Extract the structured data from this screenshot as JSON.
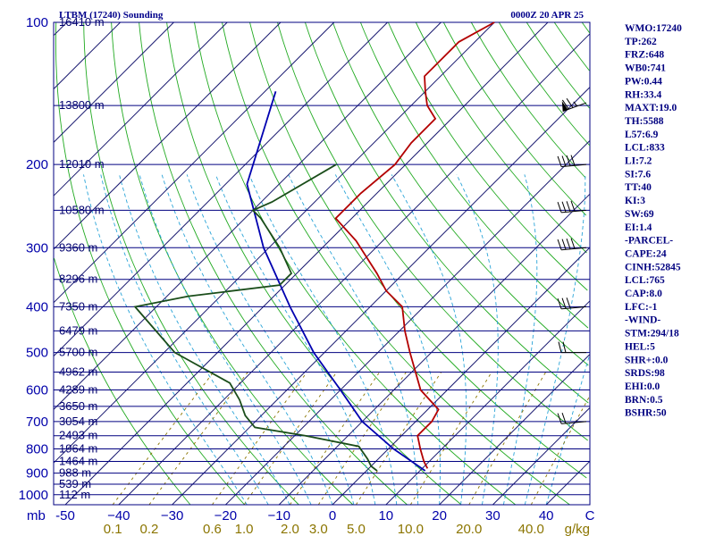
{
  "chart_data": {
    "type": "skew-t sounding",
    "title_left": "LTBM (17240) Sounding",
    "title_right": "0000Z 20 APR 25",
    "pressure_unit_label": "mb",
    "mixing_ratio_unit_label": "g/kg",
    "temperature_unit_label": "C",
    "pressure_levels": [
      100,
      200,
      300,
      400,
      500,
      600,
      700,
      800,
      900,
      1000
    ],
    "temperature_ticks": [
      -50,
      -40,
      -30,
      -20,
      -10,
      0,
      10,
      20,
      30,
      40
    ],
    "temperature_tick_labels": [
      "-50",
      "−40",
      "−30",
      "−20",
      "−10",
      "0",
      "10",
      "20",
      "30",
      "40"
    ],
    "mixing_ratio_labels": [
      "0.1",
      "0.2",
      "0.6",
      "1.0",
      "2.0",
      "3.0",
      "5.0",
      "10.0",
      "20.0",
      "40.0"
    ],
    "height_labels": [
      {
        "p": 100,
        "label": "16410 m"
      },
      {
        "p": 150,
        "label": "13800 m"
      },
      {
        "p": 200,
        "label": "12010 m"
      },
      {
        "p": 250,
        "label": "10580 m"
      },
      {
        "p": 300,
        "label": "9360 m"
      },
      {
        "p": 350,
        "label": "8296 m"
      },
      {
        "p": 400,
        "label": "7350 m"
      },
      {
        "p": 450,
        "label": "6479 m"
      },
      {
        "p": 500,
        "label": "5700 m"
      },
      {
        "p": 550,
        "label": "4962 m"
      },
      {
        "p": 600,
        "label": "4289 m"
      },
      {
        "p": 650,
        "label": "3650 m"
      },
      {
        "p": 700,
        "label": "3054 m"
      },
      {
        "p": 750,
        "label": "2493 m"
      },
      {
        "p": 800,
        "label": "1964 m"
      },
      {
        "p": 850,
        "label": "1464 m"
      },
      {
        "p": 900,
        "label": "988 m"
      },
      {
        "p": 950,
        "label": "539 m"
      },
      {
        "p": 1000,
        "label": "112 m"
      }
    ],
    "temperature_profile": [
      {
        "p": 100,
        "t": -60
      },
      {
        "p": 110,
        "t": -63
      },
      {
        "p": 130,
        "t": -63
      },
      {
        "p": 140,
        "t": -60
      },
      {
        "p": 150,
        "t": -57
      },
      {
        "p": 160,
        "t": -53
      },
      {
        "p": 180,
        "t": -53
      },
      {
        "p": 200,
        "t": -52
      },
      {
        "p": 230,
        "t": -53
      },
      {
        "p": 245,
        "t": -53
      },
      {
        "p": 260,
        "t": -53
      },
      {
        "p": 290,
        "t": -45
      },
      {
        "p": 340,
        "t": -35
      },
      {
        "p": 370,
        "t": -30
      },
      {
        "p": 400,
        "t": -24
      },
      {
        "p": 450,
        "t": -19
      },
      {
        "p": 500,
        "t": -14
      },
      {
        "p": 600,
        "t": -5
      },
      {
        "p": 660,
        "t": 2
      },
      {
        "p": 700,
        "t": 3
      },
      {
        "p": 730,
        "t": 3
      },
      {
        "p": 750,
        "t": 3
      },
      {
        "p": 800,
        "t": 6
      },
      {
        "p": 850,
        "t": 9
      },
      {
        "p": 880,
        "t": 11
      }
    ],
    "dewpoint_profile": [
      {
        "p": 200,
        "td": -63
      },
      {
        "p": 240,
        "td": -68
      },
      {
        "p": 250,
        "td": -70
      },
      {
        "p": 260,
        "td": -67
      },
      {
        "p": 300,
        "td": -58
      },
      {
        "p": 340,
        "td": -51
      },
      {
        "p": 360,
        "td": -51
      },
      {
        "p": 380,
        "td": -66
      },
      {
        "p": 400,
        "td": -74
      },
      {
        "p": 500,
        "td": -58
      },
      {
        "p": 580,
        "td": -42
      },
      {
        "p": 630,
        "td": -37
      },
      {
        "p": 680,
        "td": -33
      },
      {
        "p": 720,
        "td": -29
      },
      {
        "p": 750,
        "td": -18
      },
      {
        "p": 790,
        "td": -6
      },
      {
        "p": 840,
        "td": -2
      },
      {
        "p": 870,
        "td": 0
      },
      {
        "p": 890,
        "td": 2
      }
    ],
    "parcel_profile": [
      {
        "p": 890,
        "t": 11
      },
      {
        "p": 800,
        "t": 1
      },
      {
        "p": 700,
        "t": -10
      },
      {
        "p": 600,
        "t": -20
      },
      {
        "p": 500,
        "t": -32
      },
      {
        "p": 400,
        "t": -45
      },
      {
        "p": 300,
        "t": -61
      },
      {
        "p": 220,
        "t": -76
      },
      {
        "p": 140,
        "t": -88
      }
    ],
    "wind_barbs": [
      {
        "p": 148,
        "dir": 250,
        "speed_kt": 75
      },
      {
        "p": 200,
        "dir": 265,
        "speed_kt": 40
      },
      {
        "p": 250,
        "dir": 265,
        "speed_kt": 40
      },
      {
        "p": 300,
        "dir": 265,
        "speed_kt": 40
      },
      {
        "p": 400,
        "dir": 265,
        "speed_kt": 30
      },
      {
        "p": 500,
        "dir": 270,
        "speed_kt": 20
      },
      {
        "p": 700,
        "dir": 265,
        "speed_kt": 20
      }
    ],
    "stats": [
      "WMO:17240",
      "TP:262",
      "FRZ:648",
      "WB0:741",
      "PW:0.44",
      "RH:33.4",
      "MAXT:19.0",
      "TH:5588",
      "L57:6.9",
      "LCL:833",
      "LI:7.2",
      "SI:7.6",
      "TT:40",
      "KI:3",
      "SW:69",
      "EI:1.4",
      "-PARCEL-",
      "CAPE:24",
      "CINH:52845",
      "LCL:765",
      "CAP:8.0",
      "LFC:-1",
      "-WIND-",
      "STM:294/18",
      "HEL:5",
      "SHR+:0.0",
      "SRDS:98",
      "EHI:0.0",
      "BRN:0.5",
      "BSHR:50"
    ],
    "colors": {
      "isobar": "#000080",
      "isotherm": "#191970",
      "dry_adiabat": "#22aa22",
      "moist_adiabat": "#2aa4d8",
      "mixing_ratio": "#8b7500",
      "temperature": "#b30000",
      "dewpoint": "#1a4d1a",
      "parcel": "#0000b0",
      "barb": "#000000"
    }
  }
}
